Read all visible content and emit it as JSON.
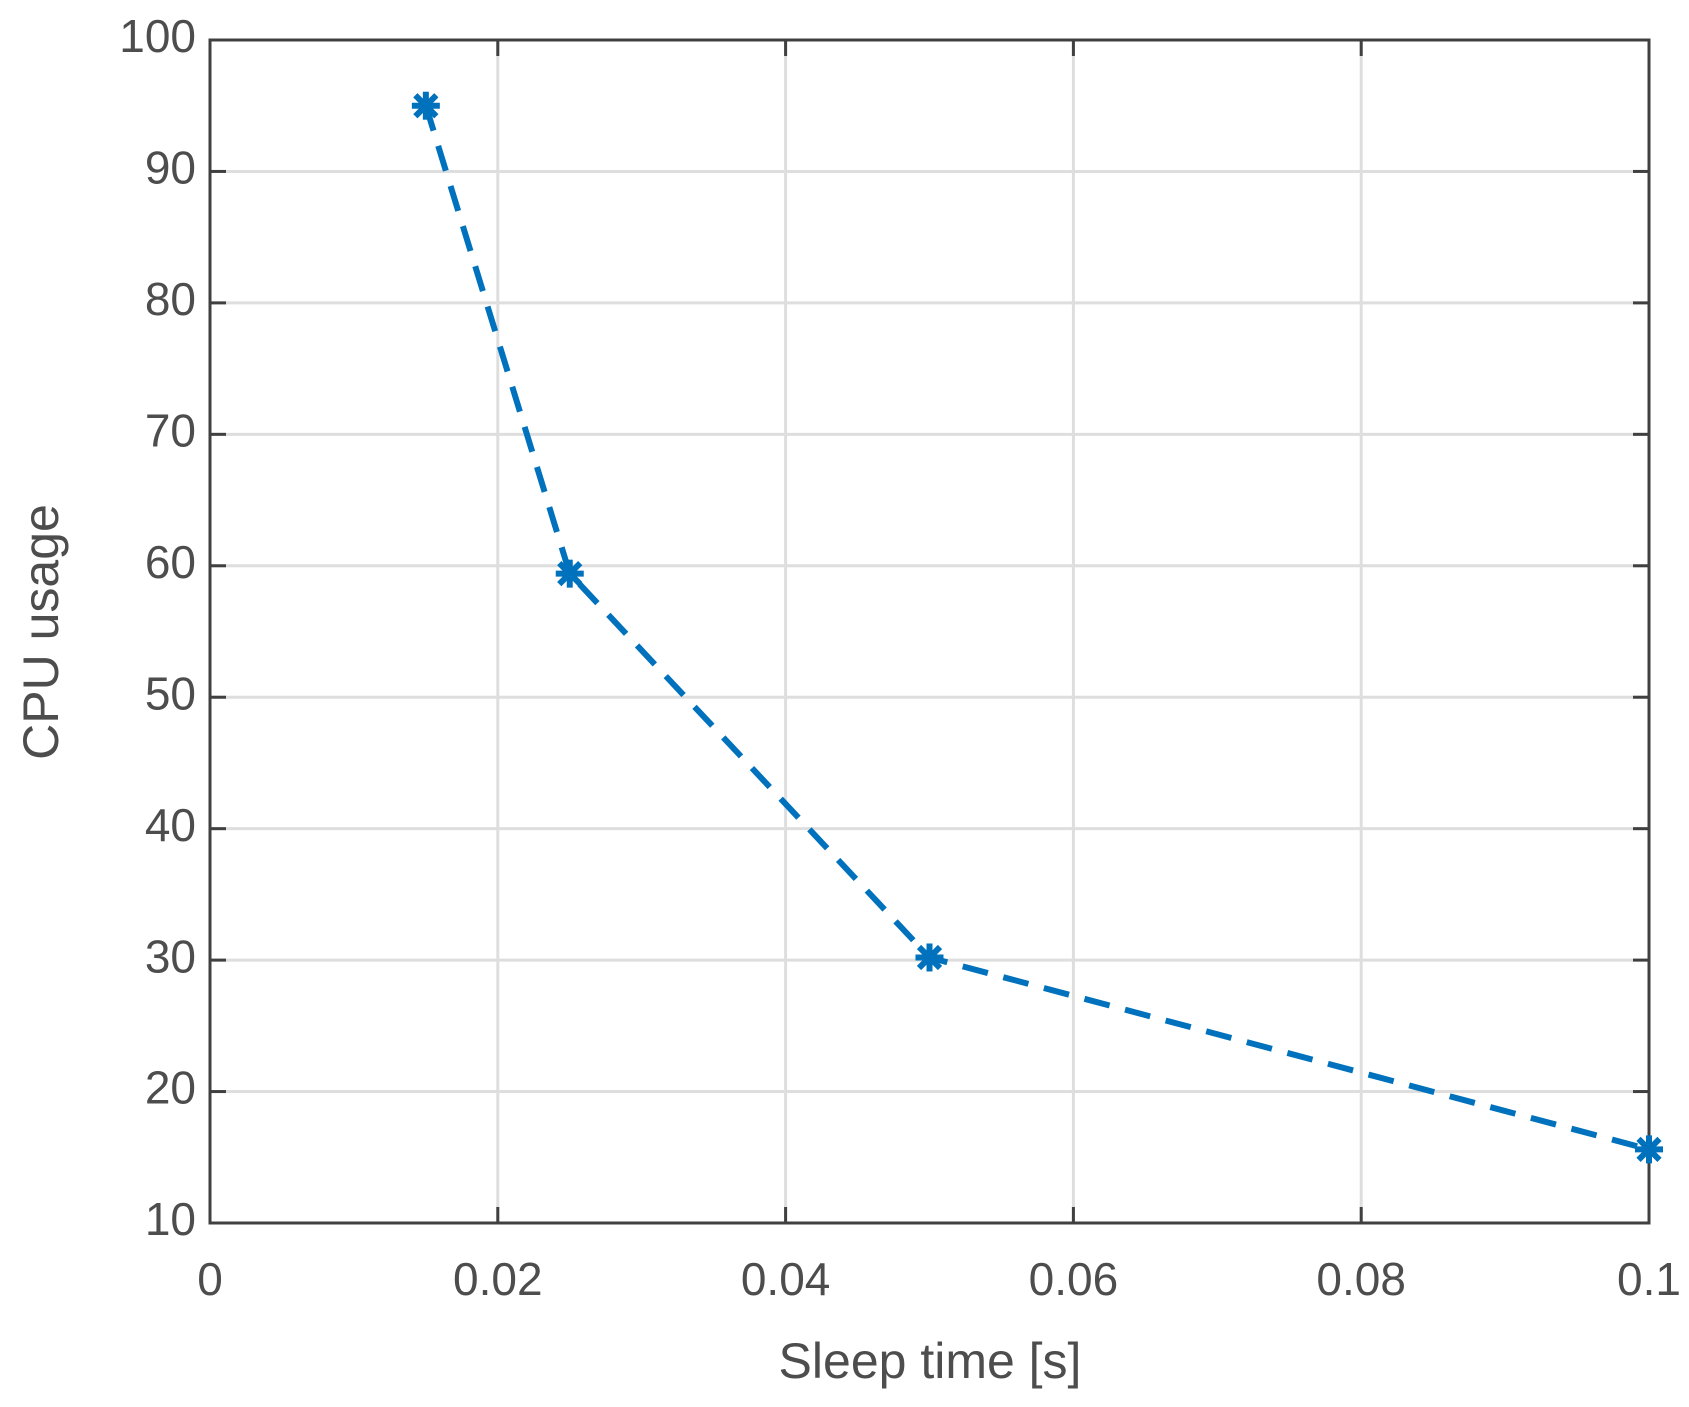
{
  "chart_data": {
    "type": "line",
    "xlabel": "Sleep time [s]",
    "ylabel": "CPU usage",
    "x": [
      0.015,
      0.025,
      0.05,
      0.1
    ],
    "values": [
      95,
      59.4,
      30.2,
      15.6
    ],
    "color": "#0072bd",
    "line_style": "dashed",
    "marker": "asterisk",
    "xlim": [
      0,
      0.1
    ],
    "xticks": [
      0,
      0.02,
      0.04,
      0.06,
      0.08,
      0.1
    ],
    "ylim": [
      10,
      100
    ],
    "yticks": [
      10,
      20,
      30,
      40,
      50,
      60,
      70,
      80,
      90,
      100
    ],
    "grid": true
  }
}
